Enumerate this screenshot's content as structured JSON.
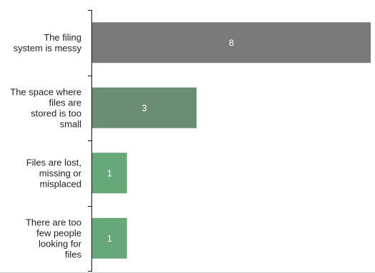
{
  "chart_data": {
    "type": "bar",
    "orientation": "horizontal",
    "categories": [
      [
        "The filing",
        "system is messy"
      ],
      [
        "The space where",
        "files are",
        "stored is too",
        "small"
      ],
      [
        "Files are lost,",
        "missing or",
        "misplaced"
      ],
      [
        "There are too",
        "few people",
        "looking for",
        "files"
      ]
    ],
    "values": [
      8,
      3,
      1,
      1
    ],
    "value_labels": [
      "8",
      "3",
      "1",
      "1"
    ],
    "colors": [
      "#7a7a7a",
      "#6b8e72",
      "#67a878",
      "#67a878"
    ],
    "xlim": [
      0,
      8
    ],
    "grid": false,
    "legend": "none"
  }
}
